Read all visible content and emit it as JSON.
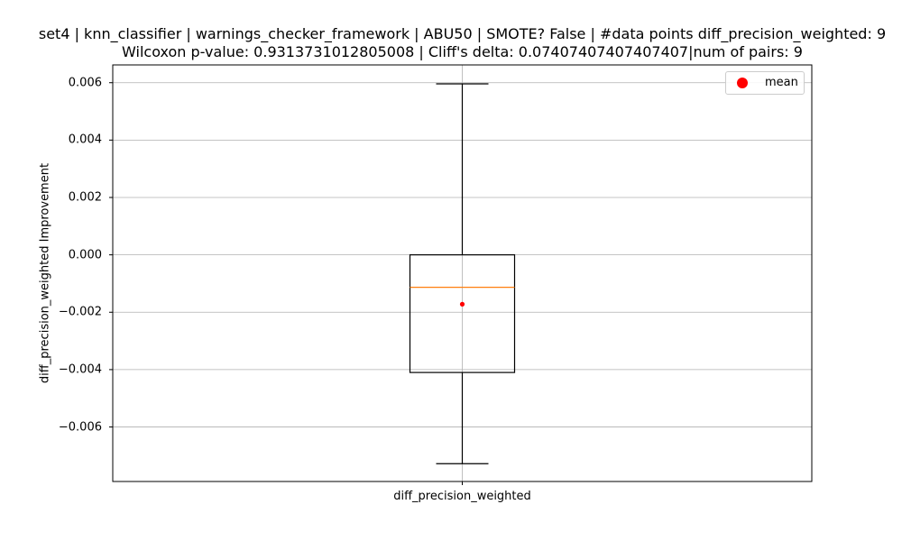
{
  "chart_data": {
    "type": "box",
    "title_line1": "set4 | knn_classifier | warnings_checker_framework | ABU50 | SMOTE? False | #data points diff_precision_weighted: 9",
    "title_line2": "Wilcoxon p-value: 0.9313731012805008 | Cliff's delta: 0.07407407407407407|num of pairs: 9",
    "ylabel": "diff_precision_weighted Improvement",
    "categories": [
      "diff_precision_weighted"
    ],
    "boxes": [
      {
        "whisker_low": -0.00728,
        "q1": -0.0041,
        "median": -0.00113,
        "q3": 0.0,
        "whisker_high": 0.00596,
        "mean": -0.00172
      }
    ],
    "ylim": [
      -0.0079,
      0.00662
    ],
    "yticks": [
      -0.006,
      -0.004,
      -0.002,
      0.0,
      0.002,
      0.004,
      0.006
    ],
    "ytick_labels": [
      "−0.006",
      "−0.004",
      "−0.002",
      "0.000",
      "0.002",
      "0.004",
      "0.006"
    ],
    "grid": true,
    "legend": {
      "placement": "top-right",
      "entries": [
        {
          "label": "mean",
          "marker": "circle",
          "color": "#ff0000"
        }
      ]
    },
    "colors": {
      "box": "#000000",
      "median": "#ff7f0e",
      "mean": "#ff0000",
      "grid": "#b0b0b0"
    }
  }
}
